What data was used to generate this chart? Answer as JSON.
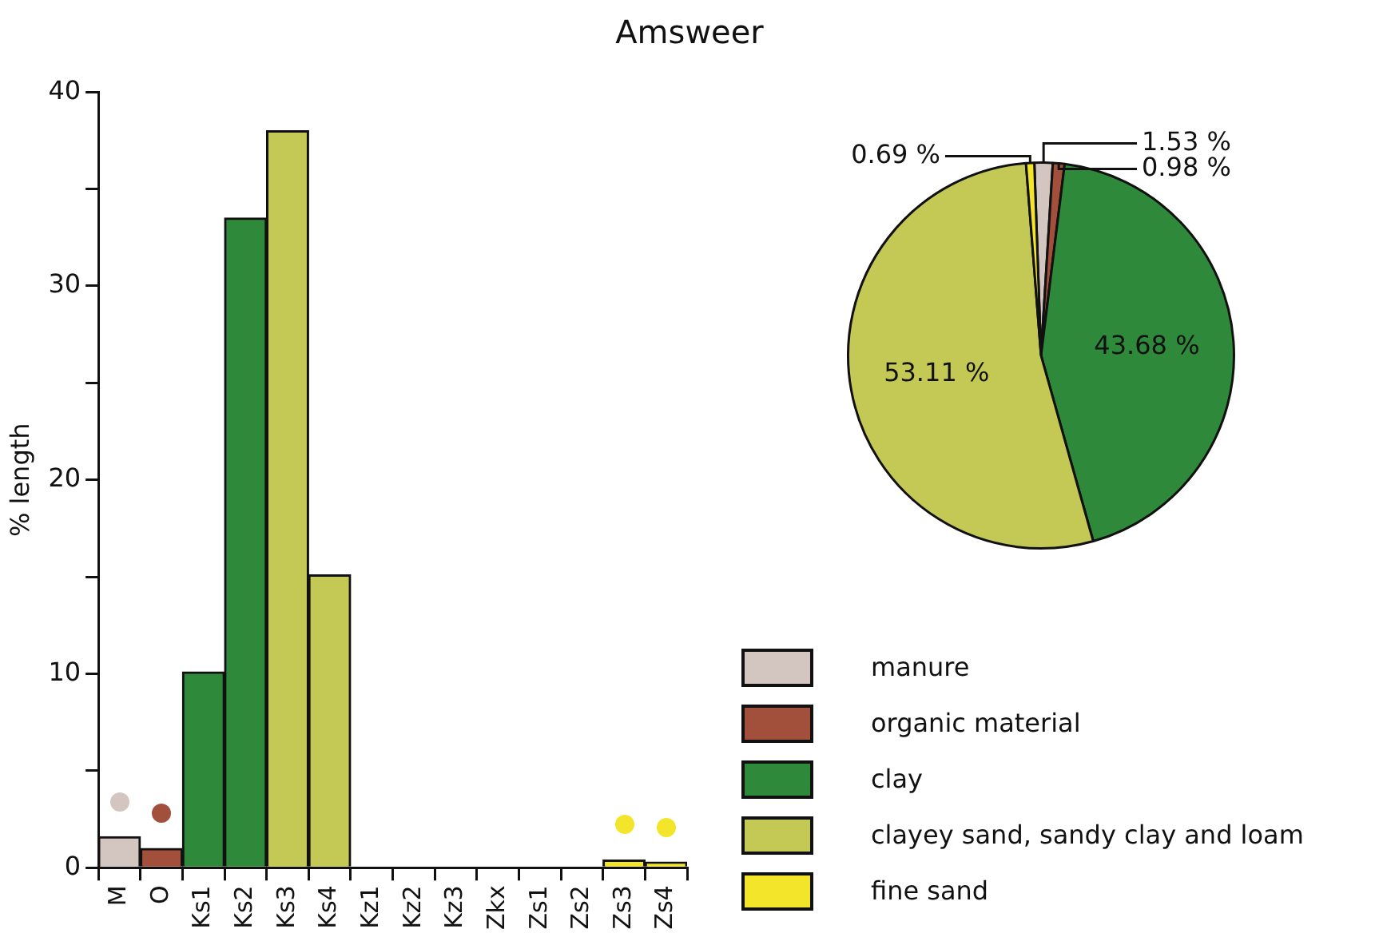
{
  "chart_data": [
    {
      "type": "bar",
      "title": "Amsweer",
      "ylabel": "% length",
      "categories": [
        "M",
        "O",
        "Ks1",
        "Ks2",
        "Ks3",
        "Ks4",
        "Kz1",
        "Kz2",
        "Kz3",
        "Zkx",
        "Zs1",
        "Zs2",
        "Zs3",
        "Zs4"
      ],
      "values": [
        1.6,
        1.0,
        10.1,
        33.5,
        38.0,
        15.1,
        0,
        0,
        0,
        0,
        0,
        0,
        0.4,
        0.3
      ],
      "colors": [
        "#d3c6c0",
        "#a24f3c",
        "#2e8a3a",
        "#2e8a3a",
        "#c4c854",
        "#c4c854",
        "#2e8a3a",
        "#2e8a3a",
        "#2e8a3a",
        "#2e8a3a",
        "#f3e52a",
        "#f3e52a",
        "#f3e52a",
        "#f3e52a"
      ],
      "ylim": [
        0,
        40
      ],
      "yticks": [
        0,
        {
          "value": 5,
          "label": null
        },
        10,
        {
          "value": 15,
          "label": null
        },
        20,
        {
          "value": 25,
          "label": null
        },
        30,
        {
          "value": 35,
          "label": null
        },
        40
      ],
      "grid": false,
      "legend": false
    },
    {
      "type": "pie",
      "categories": [
        "manure",
        "organic material",
        "clay",
        "clayey sand, sandy clay and loam",
        "fine sand"
      ],
      "values": [
        1.53,
        0.98,
        43.68,
        53.11,
        0.69
      ],
      "colors": [
        "#d3c6c0",
        "#a24f3c",
        "#2e8a3a",
        "#c4c854",
        "#f3e52a"
      ],
      "value_labels": [
        "1.53 %",
        "0.98 %",
        "43.68 %",
        "53.11 %",
        "0.69 %"
      ],
      "legend": "bottom"
    }
  ]
}
